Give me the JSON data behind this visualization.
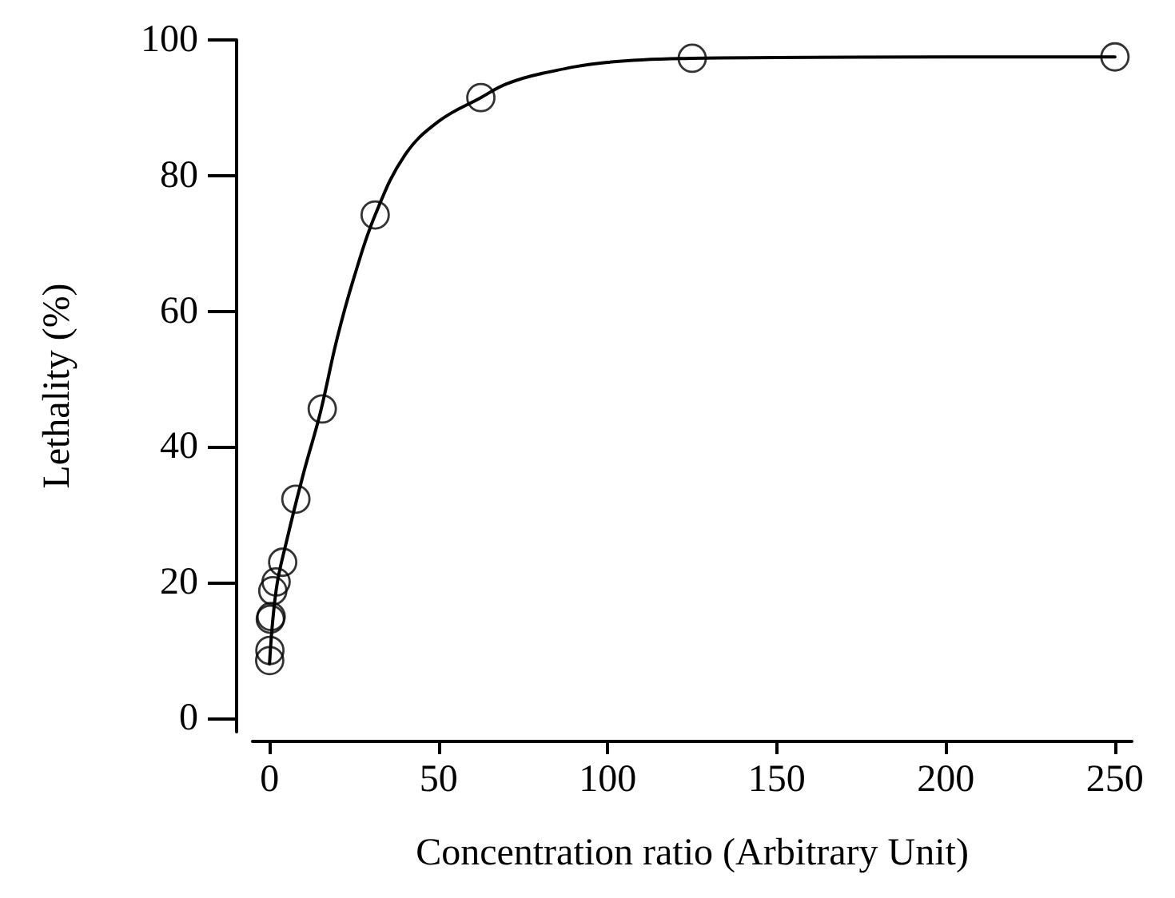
{
  "chart_data": {
    "type": "scatter",
    "xlabel": "Concentration ratio (Arbitrary Unit)",
    "ylabel": "Lethality (%)",
    "xlim": [
      -5,
      255
    ],
    "xticks": [
      0,
      50,
      100,
      150,
      200,
      250
    ],
    "ylim": [
      -2,
      100
    ],
    "yticks": [
      0,
      20,
      40,
      60,
      80,
      100
    ],
    "grid": false,
    "marker": "circle",
    "series": [
      {
        "color": "#000000",
        "x": [
          250,
          125,
          62.5,
          31.25,
          15.6,
          7.8,
          3.9,
          1.95,
          0.98,
          0.49,
          0.24,
          0.12,
          0.06
        ],
        "values": [
          97.5,
          97.3,
          91.5,
          74.2,
          45.6,
          32.3,
          23,
          20.1,
          18.8,
          15,
          14.6,
          10,
          8.5
        ]
      },
      {
        "type": "line",
        "color": "#000000",
        "marker": "none",
        "x": [
          0,
          2,
          5,
          10,
          15,
          20,
          25,
          31.25,
          40,
          50,
          62.5,
          70,
          80,
          100,
          125,
          150,
          200,
          250
        ],
        "values": [
          8,
          19,
          26,
          36,
          45,
          56,
          65,
          74.2,
          83,
          88,
          91.5,
          93.5,
          95,
          96.7,
          97.3,
          97.4,
          97.5,
          97.5
        ]
      }
    ]
  }
}
